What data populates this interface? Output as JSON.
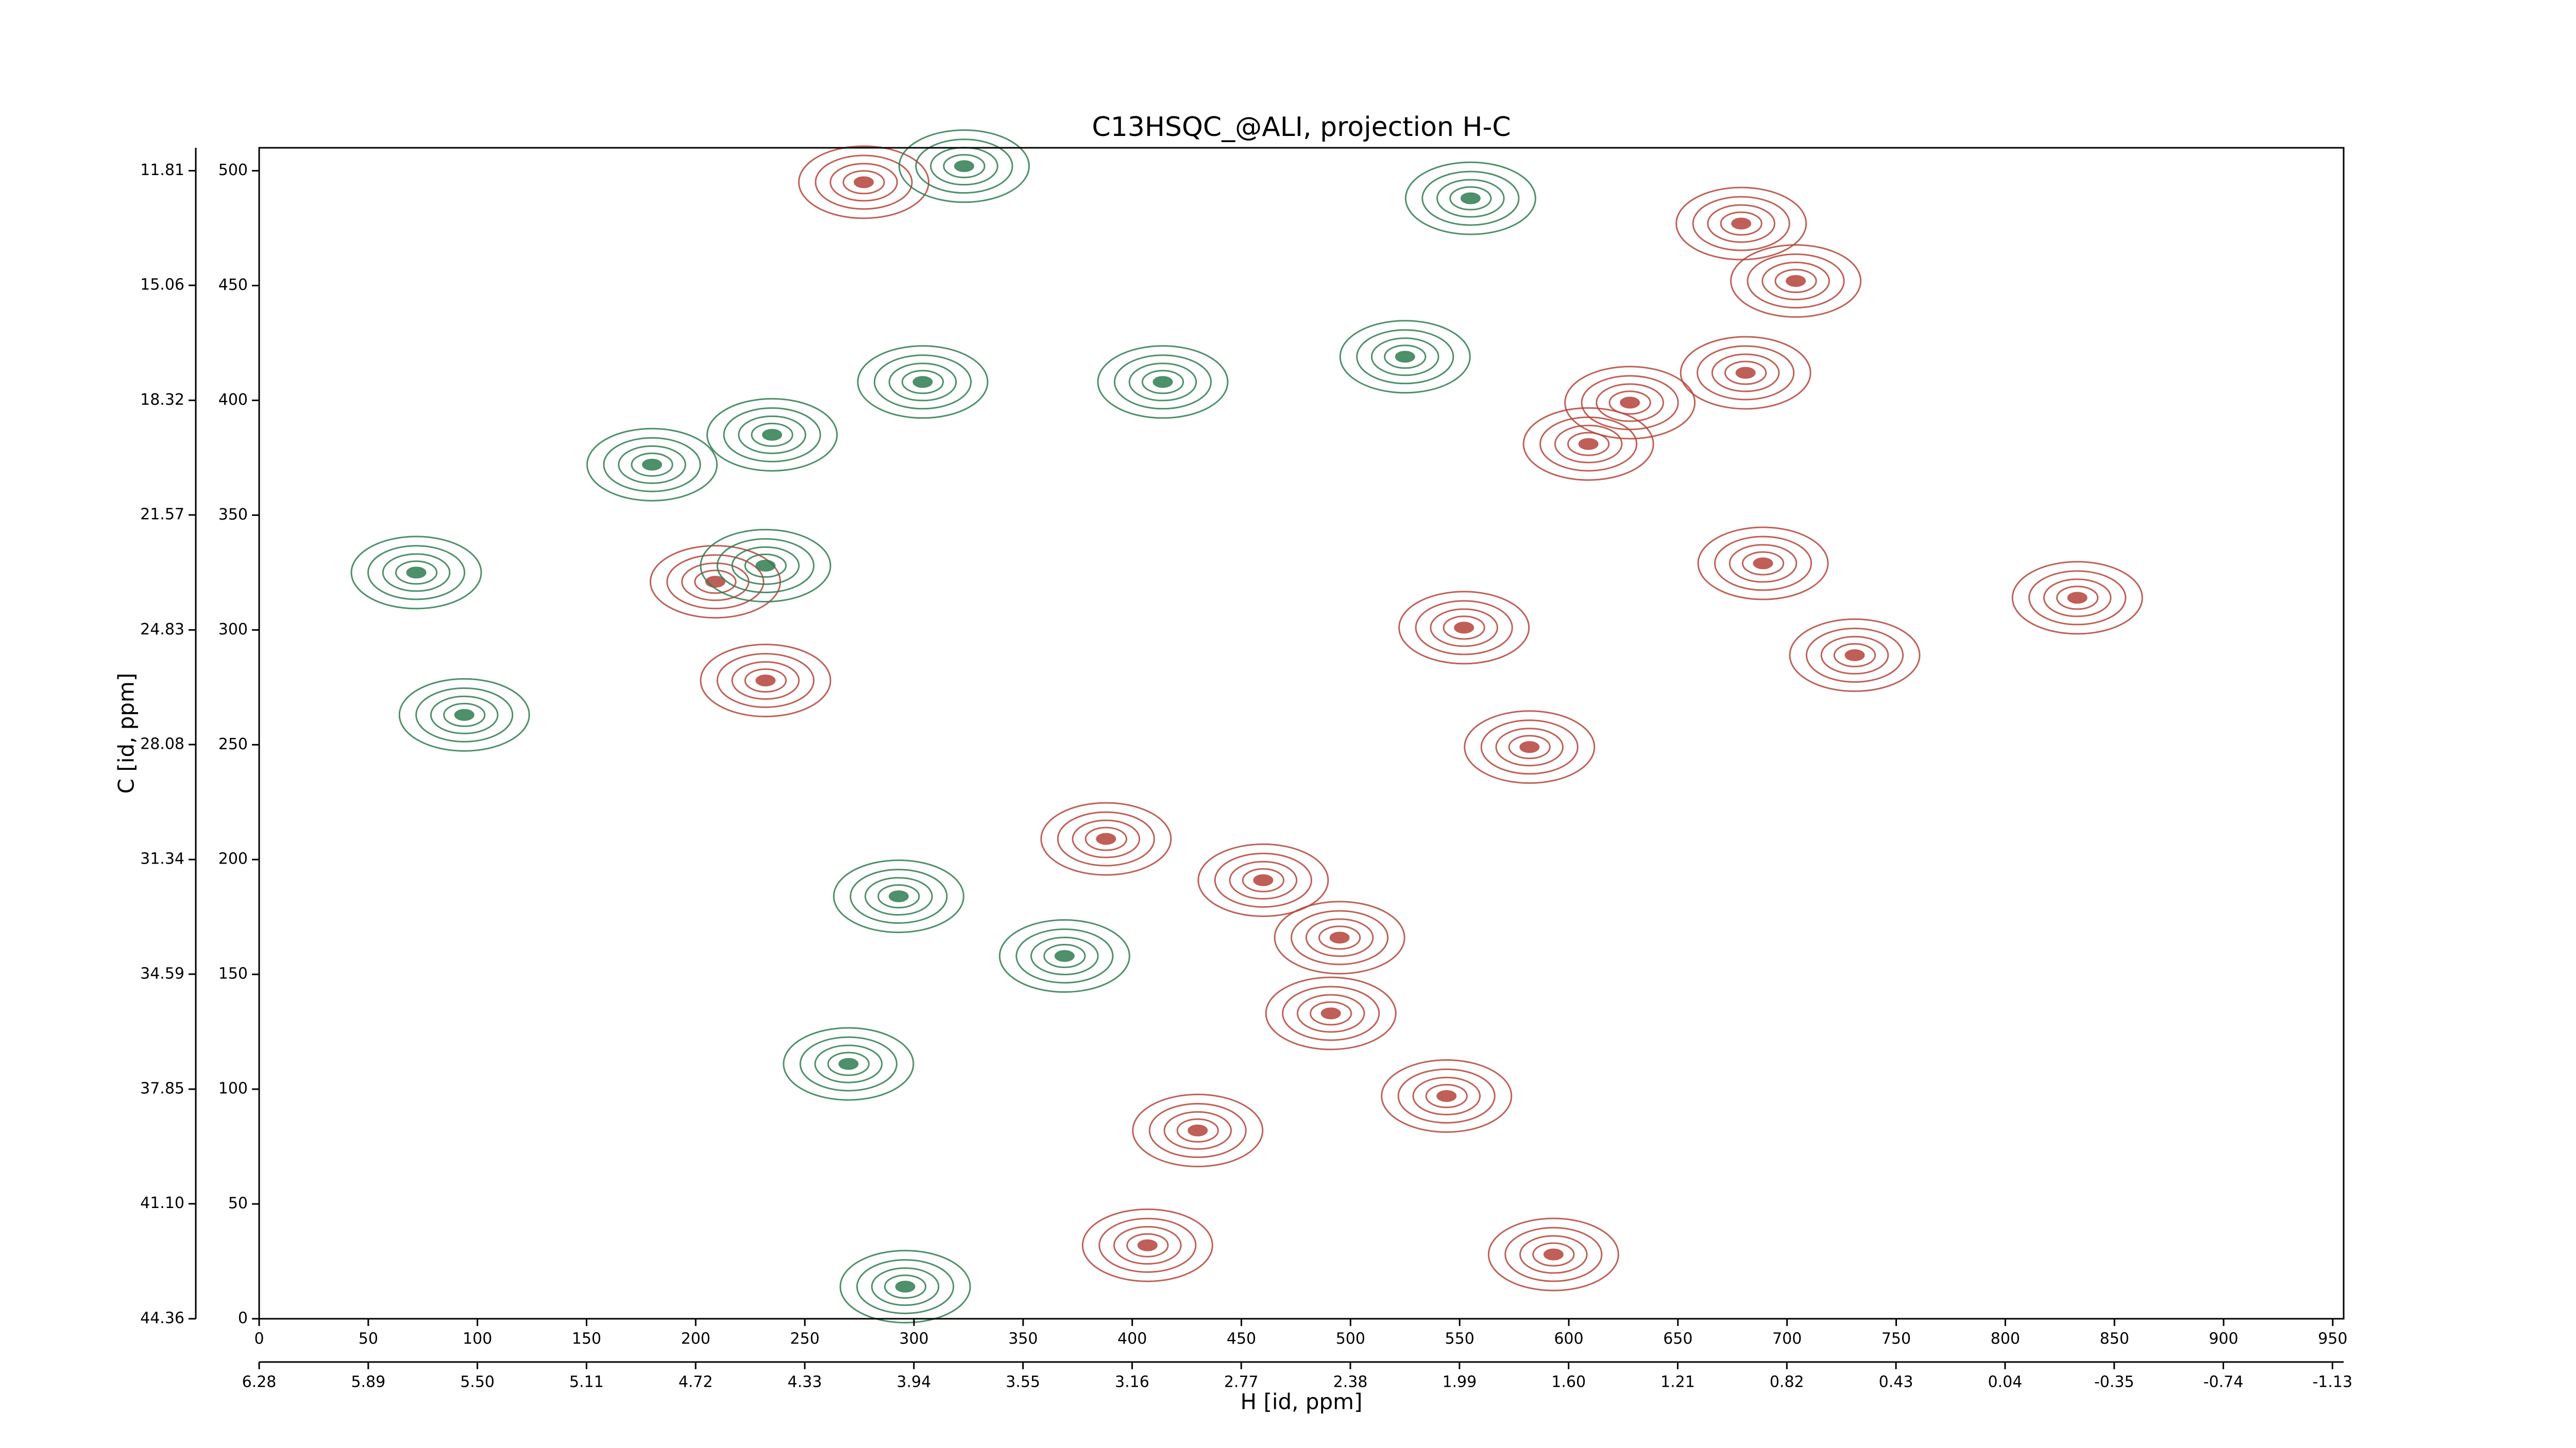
{
  "chart_data": {
    "type": "contour",
    "title": "C13HSQC_@ALI, projection H-C",
    "xlabel": "H [id, ppm]",
    "ylabel": "C [id, ppm]",
    "xlim": [
      0,
      955
    ],
    "xticks": [
      0,
      50,
      100,
      150,
      200,
      250,
      300,
      350,
      400,
      450,
      500,
      550,
      600,
      650,
      700,
      750,
      800,
      850,
      900,
      950
    ],
    "ylim": [
      0,
      510
    ],
    "yticks": [
      0,
      50,
      100,
      150,
      200,
      250,
      300,
      350,
      400,
      450,
      500
    ],
    "x2lim": [
      6.28,
      -1.17
    ],
    "x2ticks": [
      6.28,
      5.89,
      {
        "value": 5.5,
        "label": "5.50"
      },
      5.11,
      4.72,
      4.33,
      3.94,
      3.55,
      3.16,
      2.77,
      2.38,
      1.99,
      {
        "value": 1.6,
        "label": "1.60"
      },
      1.21,
      0.82,
      0.43,
      0.04,
      -0.35,
      -0.74,
      -1.13
    ],
    "y2lim": [
      44.36,
      11.16
    ],
    "y2ticks": [
      44.36,
      {
        "value": 41.1,
        "label": "41.10"
      },
      37.85,
      34.59,
      31.34,
      28.08,
      24.83,
      21.57,
      18.32,
      15.06,
      11.81
    ],
    "series": [
      {
        "color": "#b5443a",
        "x": [
          679,
          681,
          628,
          609,
          689,
          552,
          833,
          731,
          582,
          460,
          495,
          491,
          544,
          430,
          407,
          593,
          232,
          209,
          277,
          388,
          704
        ],
        "y": [
          477,
          412,
          399,
          381,
          329,
          301,
          314,
          289,
          249,
          191,
          166,
          133,
          97,
          82,
          32,
          28,
          278,
          321,
          495,
          209,
          452
        ]
      },
      {
        "color": "#2e7d4f",
        "x": [
          180,
          235,
          232,
          270,
          296,
          304,
          414,
          525,
          555,
          72,
          323,
          94,
          369,
          293
        ],
        "y": [
          372,
          385,
          328,
          111,
          14,
          408,
          408,
          419,
          488,
          325,
          502,
          263,
          158,
          184
        ]
      }
    ]
  }
}
